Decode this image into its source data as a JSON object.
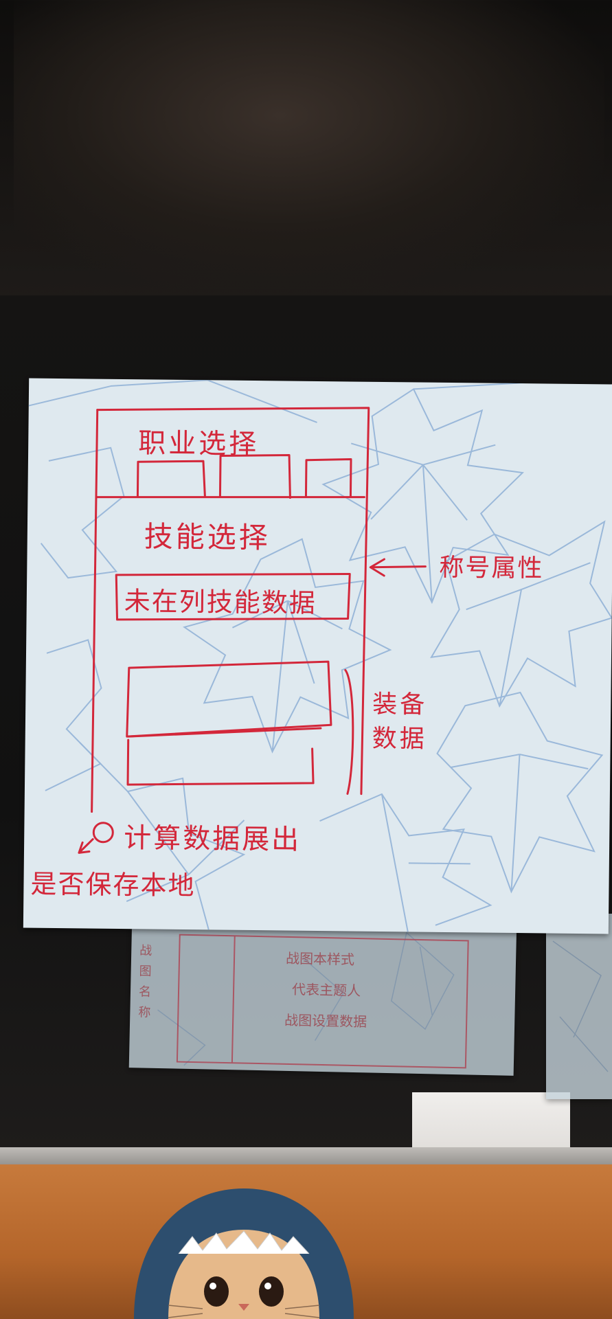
{
  "sticky_note": {
    "job_select": "职业选择",
    "skill_select": "技能选择",
    "skill_data_column": "未在列技能数据",
    "attr_annotation": "称号属性",
    "equip_line1": "装备",
    "equip_line2": "数据",
    "calc_output": "计算数据展出",
    "save_local": "是否保存本地"
  },
  "reflection_note": {
    "line1": "战图本样式",
    "line2": "代表主题人",
    "line3": "战图设置数据",
    "side1": "战",
    "side2": "图",
    "side3": "名",
    "side4": "称"
  },
  "colors": {
    "note_bg": "#dfe9ef",
    "ink_red": "#d3273a",
    "leaf_blue": "#8fb0d6",
    "desk_orange": "#c77a3c"
  }
}
